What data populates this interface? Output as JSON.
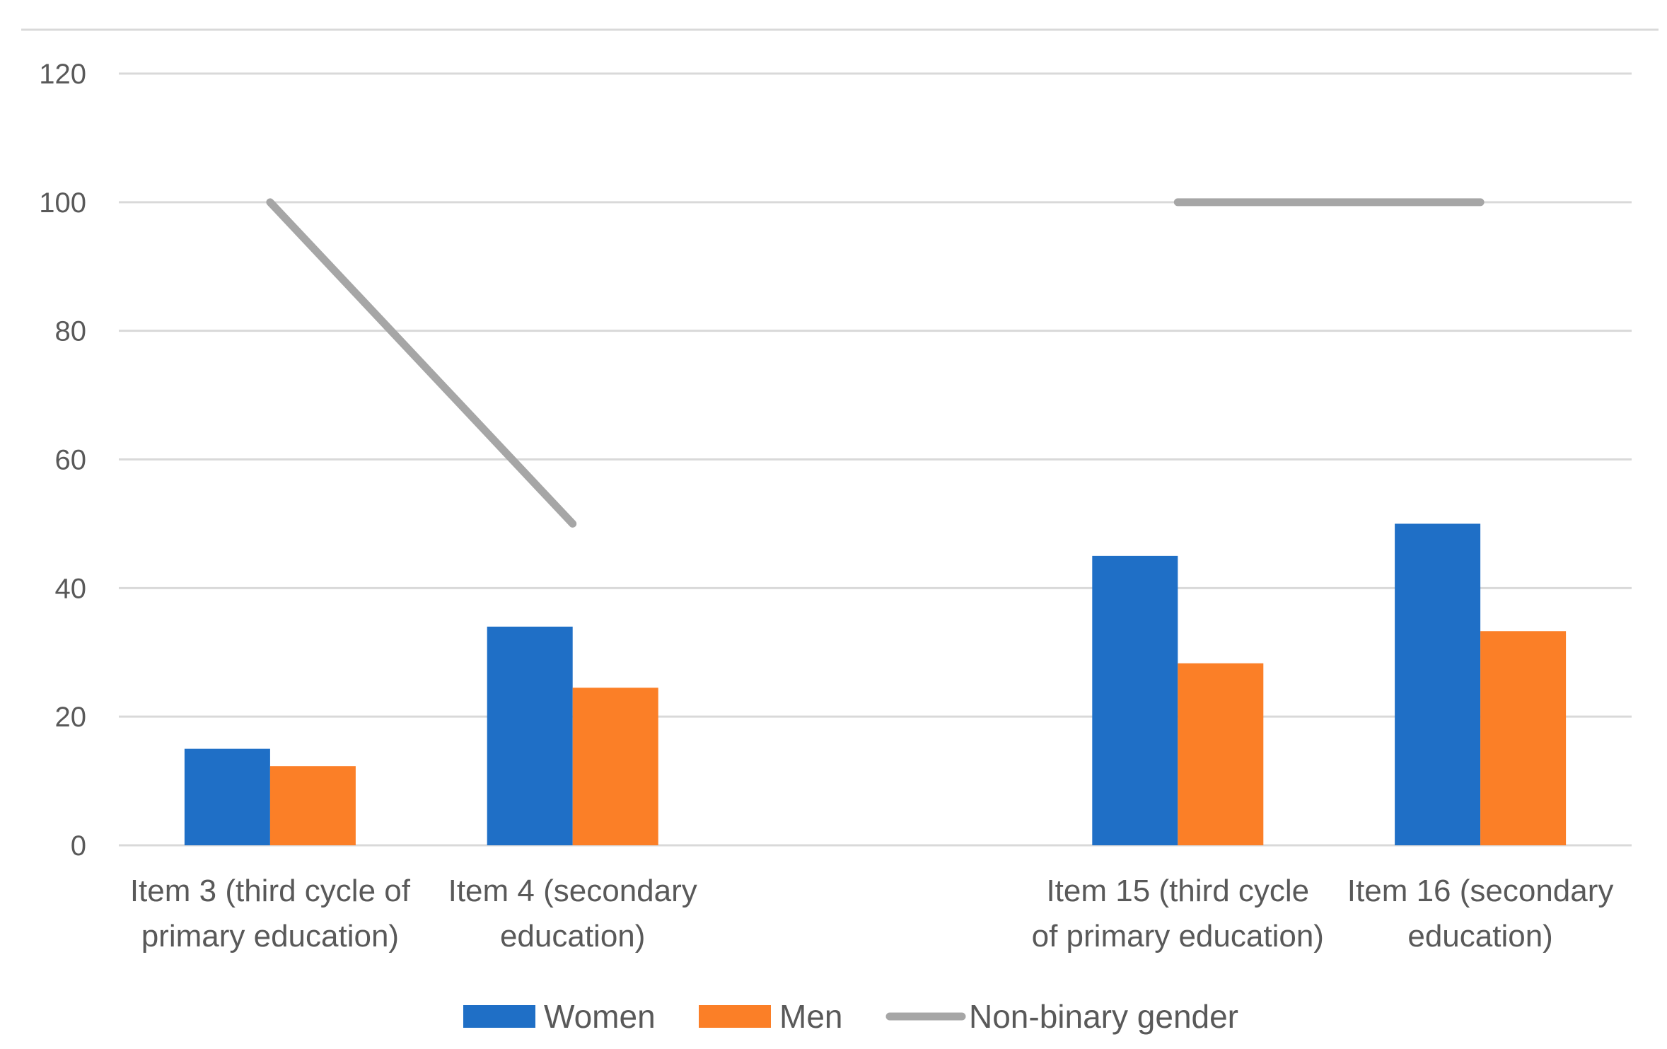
{
  "chart_data": {
    "type": "bar",
    "title": "",
    "xlabel": "",
    "ylabel": "",
    "ylim": [
      0,
      120
    ],
    "yticks": [
      0,
      20,
      40,
      60,
      80,
      100,
      120
    ],
    "grid": true,
    "legend_position": "bottom",
    "categories": [
      [
        "Item 3 (third cycle of",
        "primary education)"
      ],
      [
        "Item 4 (secondary",
        "education)"
      ],
      [
        "",
        ""
      ],
      [
        "Item 15 (third cycle",
        "of primary education)"
      ],
      [
        "Item 16 (secondary",
        "education)"
      ]
    ],
    "series": [
      {
        "name": "Women",
        "kind": "bar",
        "color": "#1f6fc6",
        "values": [
          15,
          34,
          0,
          45,
          50
        ]
      },
      {
        "name": "Men",
        "kind": "bar",
        "color": "#fb7f27",
        "values": [
          12.3,
          24.5,
          0,
          28.3,
          33.3
        ]
      },
      {
        "name": "Non-binary gender",
        "kind": "line",
        "color": "#a6a6a6",
        "values": [
          100,
          50,
          null,
          100,
          100
        ]
      }
    ]
  }
}
